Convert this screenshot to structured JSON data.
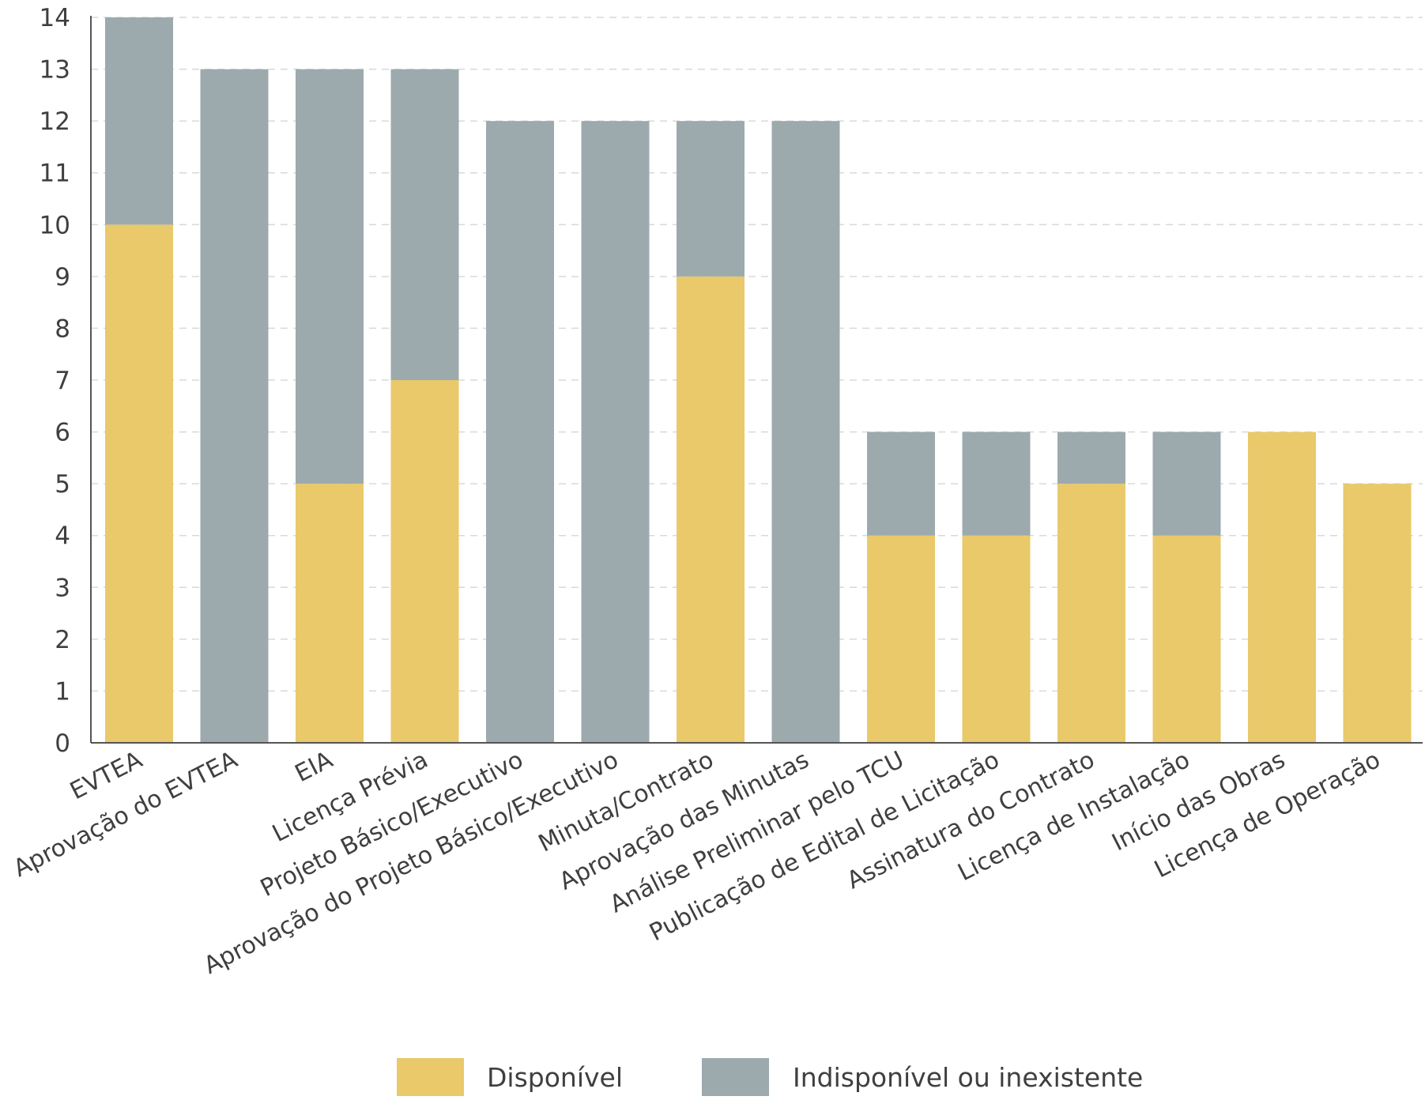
{
  "chart_data": {
    "type": "bar",
    "stacked": true,
    "categories": [
      "EVTEA",
      "Aprovação do EVTEA",
      "EIA",
      "Licença Prévia",
      "Projeto Básico/Executivo",
      "Aprovação do Projeto Básico/Executivo",
      "Minuta/Contrato",
      "Aprovação das Minutas",
      "Análise Preliminar pelo TCU",
      "Publicação de Edital de Licitação",
      "Assinatura do Contrato",
      "Licença de Instalação",
      "Início das Obras",
      "Licença de Operação"
    ],
    "series": [
      {
        "name": "Disponível",
        "color": "#e9c96a",
        "values": [
          10,
          0,
          5,
          7,
          0,
          0,
          9,
          0,
          4,
          4,
          5,
          4,
          6,
          5
        ]
      },
      {
        "name": "Indisponível ou inexistente",
        "color": "#9caaae",
        "values": [
          4,
          13,
          8,
          6,
          12,
          12,
          3,
          12,
          2,
          2,
          1,
          2,
          0,
          0
        ]
      }
    ],
    "y_ticks": [
      "0",
      "1",
      "2",
      "3",
      "4",
      "5",
      "6",
      "7",
      "8",
      "9",
      "10",
      "11",
      "12",
      "13",
      "14"
    ],
    "ylim": [
      0,
      14
    ],
    "grid": "horizontal dashed",
    "legend_position": "bottom-center",
    "title": "",
    "xlabel": "",
    "ylabel": ""
  }
}
